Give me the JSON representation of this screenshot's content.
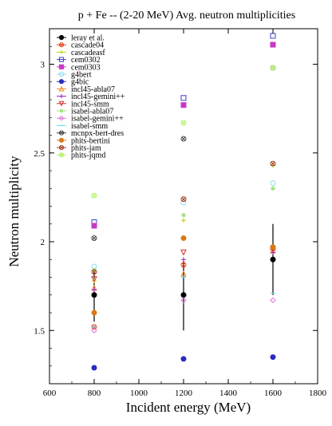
{
  "chart_data": {
    "type": "scatter",
    "title": "p + Fe -- (2-20 MeV) Avg. neutron multiplicities",
    "xlabel": "Incident energy (MeV)",
    "ylabel": "Neutron multiplicity",
    "xlim": [
      600,
      1800
    ],
    "ylim": [
      1.2,
      3.2
    ],
    "xticks": [
      600,
      800,
      1000,
      1200,
      1400,
      1600,
      1800
    ],
    "yticks": [
      1.5,
      2,
      2.5,
      3
    ],
    "grid": false,
    "legend_position": "top-left",
    "x": [
      800,
      1200,
      1600
    ],
    "series": [
      {
        "name": "leray et al.",
        "color": "#000000",
        "marker": "filled-circle",
        "values": [
          1.7,
          1.7,
          1.9
        ],
        "errors": [
          0.15,
          0.2,
          0.2
        ]
      },
      {
        "name": "cascade04",
        "color": "#e8461e",
        "marker": "x-circle",
        "values": [
          1.52,
          1.87,
          1.96
        ]
      },
      {
        "name": "cascadeasf",
        "color": "#b8d400",
        "marker": "plus",
        "values": [
          1.78,
          2.12,
          2.43
        ]
      },
      {
        "name": "cem0302",
        "color": "#3c3cc8",
        "marker": "open-square",
        "values": [
          2.11,
          2.81,
          3.16
        ]
      },
      {
        "name": "cem0303",
        "color": "#c837c8",
        "marker": "filled-square",
        "values": [
          2.09,
          2.77,
          3.11
        ]
      },
      {
        "name": "g4bert",
        "color": "#88ddee",
        "marker": "open-circle",
        "values": [
          1.86,
          2.22,
          2.33
        ]
      },
      {
        "name": "g4bic",
        "color": "#2a2ac0",
        "marker": "filled-circle",
        "values": [
          1.29,
          1.34,
          1.35
        ]
      },
      {
        "name": "incl45-abla07",
        "color": "#f08a28",
        "marker": "open-triangle",
        "values": [
          1.74,
          1.82,
          1.95
        ]
      },
      {
        "name": "incl45-gemini++",
        "color": "#a020c8",
        "marker": "plus",
        "values": [
          1.73,
          1.9,
          1.94
        ]
      },
      {
        "name": "incl45-smm",
        "color": "#d03030",
        "marker": "down-triangle",
        "values": [
          1.79,
          1.94,
          1.96
        ]
      },
      {
        "name": "isabel-abla07",
        "color": "#9ae070",
        "marker": "star",
        "values": [
          1.84,
          2.15,
          2.3
        ]
      },
      {
        "name": "isabel-gemini++",
        "color": "#e070e0",
        "marker": "open-diamond",
        "values": [
          1.5,
          1.67,
          1.67
        ]
      },
      {
        "name": "isabel-smm",
        "color": "#70d8f0",
        "marker": "dash",
        "values": [
          1.52,
          1.8,
          1.71
        ]
      },
      {
        "name": "mcnpx-bert-dres",
        "color": "#444444",
        "marker": "x-circle",
        "values": [
          2.02,
          2.58,
          2.98
        ]
      },
      {
        "name": "phits-bertini",
        "color": "#d87a1a",
        "marker": "filled-circle",
        "values": [
          1.6,
          2.02,
          1.97
        ]
      },
      {
        "name": "phits-jam",
        "color": "#a04020",
        "marker": "x-circle",
        "values": [
          1.83,
          2.24,
          2.44
        ]
      },
      {
        "name": "phits-jqmd",
        "color": "#b0f060",
        "marker": "x-circle",
        "values": [
          2.26,
          2.67,
          2.98
        ]
      }
    ]
  }
}
